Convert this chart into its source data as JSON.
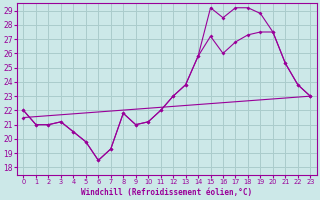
{
  "xlabel": "Windchill (Refroidissement éolien,°C)",
  "bg_color": "#cce8e8",
  "grid_color": "#aacccc",
  "line_color": "#990099",
  "xlim": [
    -0.5,
    23.5
  ],
  "ylim": [
    17.5,
    29.5
  ],
  "xticks": [
    0,
    1,
    2,
    3,
    4,
    5,
    6,
    7,
    8,
    9,
    10,
    11,
    12,
    13,
    14,
    15,
    16,
    17,
    18,
    19,
    20,
    21,
    22,
    23
  ],
  "yticks": [
    18,
    19,
    20,
    21,
    22,
    23,
    24,
    25,
    26,
    27,
    28,
    29
  ],
  "line1_x": [
    0,
    1,
    2,
    3,
    4,
    5,
    6,
    7,
    8,
    9,
    10,
    11,
    12,
    13,
    14,
    15,
    16,
    17,
    18,
    19,
    20,
    21,
    22,
    23
  ],
  "line1_y": [
    22.0,
    21.0,
    21.0,
    21.2,
    20.5,
    19.8,
    18.5,
    19.3,
    21.8,
    21.0,
    21.2,
    22.0,
    23.0,
    23.8,
    25.8,
    27.2,
    26.0,
    26.8,
    27.3,
    27.5,
    27.5,
    25.3,
    23.8,
    23.0
  ],
  "line2_x": [
    0,
    1,
    2,
    3,
    4,
    5,
    6,
    7,
    8,
    9,
    10,
    11,
    12,
    13,
    14,
    15,
    16,
    17,
    18,
    19,
    20,
    21,
    22,
    23
  ],
  "line2_y": [
    22.0,
    21.0,
    21.0,
    21.2,
    20.5,
    19.8,
    18.5,
    19.3,
    21.8,
    21.0,
    21.2,
    22.0,
    23.0,
    23.8,
    25.8,
    29.2,
    28.5,
    29.2,
    29.2,
    28.8,
    27.5,
    25.3,
    23.8,
    23.0
  ],
  "line3_x": [
    0,
    23
  ],
  "line3_y": [
    21.5,
    23.0
  ]
}
